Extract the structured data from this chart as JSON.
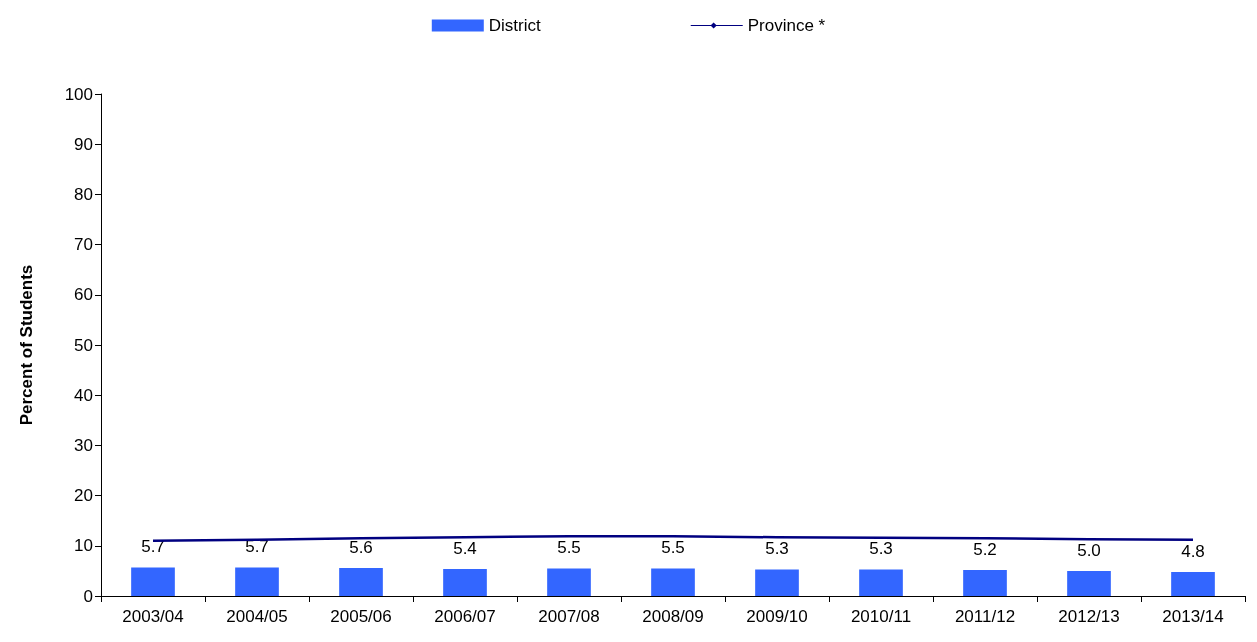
{
  "chart_data": {
    "type": "bar",
    "ylabel": "Percent of Students",
    "categories": [
      "2003/04",
      "2004/05",
      "2005/06",
      "2006/07",
      "2007/08",
      "2008/09",
      "2009/10",
      "2010/11",
      "2011/12",
      "2012/13",
      "2013/14"
    ],
    "series": [
      {
        "name": "District",
        "color": "#3366ff",
        "values": [
          5.7,
          5.7,
          5.6,
          5.4,
          5.5,
          5.5,
          5.3,
          5.3,
          5.2,
          5.0,
          4.8
        ],
        "value_labels": [
          "5.7",
          "5.7",
          "5.6",
          "5.4",
          "5.5",
          "5.5",
          "5.3",
          "5.3",
          "5.2",
          "5.0",
          "4.8"
        ]
      },
      {
        "name": "Province *",
        "type": "line",
        "color": "#000080",
        "values": [
          11.0,
          11.2,
          11.5,
          11.7,
          11.9,
          11.9,
          11.7,
          11.6,
          11.5,
          11.3,
          11.2
        ],
        "marker": "none"
      }
    ],
    "ylim": [
      0,
      100
    ],
    "yticks": [
      0,
      10,
      20,
      30,
      40,
      50,
      60,
      70,
      80,
      90,
      100
    ],
    "grid": false,
    "legend": "top"
  }
}
